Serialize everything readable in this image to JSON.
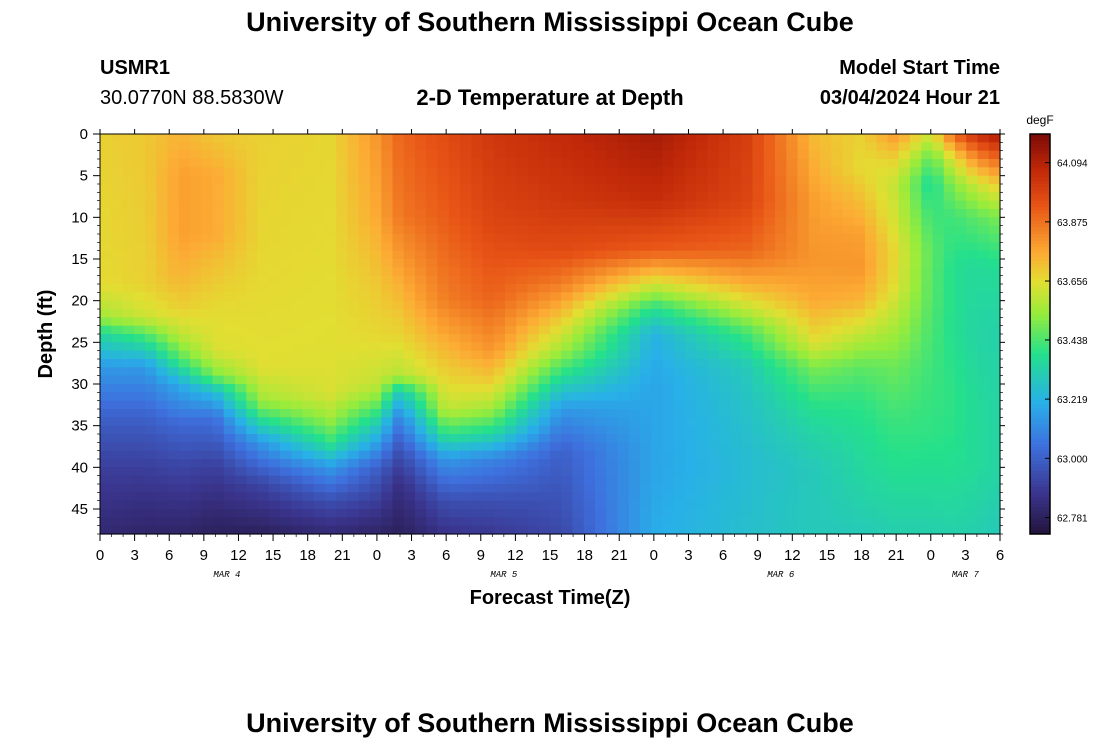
{
  "header": {
    "title": "University of Southern Mississippi Ocean Cube",
    "station_id": "USMR1",
    "coordinates": "30.0770N  88.5830W",
    "plot_title": "2-D Temperature at Depth",
    "model_start_label": "Model Start Time",
    "model_start_value": "03/04/2024 Hour 21"
  },
  "footer": {
    "title": "University of Southern Mississippi Ocean Cube"
  },
  "chart_data": {
    "type": "heatmap",
    "title": "2-D Temperature at Depth",
    "xlabel": "Forecast Time(Z)",
    "ylabel": "Depth (ft)",
    "x_range_hours": [
      0,
      78
    ],
    "y_range_ft": [
      0,
      48
    ],
    "x_tick_labels": [
      "0",
      "3",
      "6",
      "9",
      "12",
      "15",
      "18",
      "21",
      "0",
      "3",
      "6",
      "9",
      "12",
      "15",
      "18",
      "21",
      "0",
      "3",
      "6",
      "9",
      "12",
      "15",
      "18",
      "21",
      "0",
      "3",
      "6"
    ],
    "day_labels": [
      {
        "label": "MAR 4",
        "hour": 11
      },
      {
        "label": "MAR 5",
        "hour": 35
      },
      {
        "label": "MAR 6",
        "hour": 59
      },
      {
        "label": "MAR 7",
        "hour": 75
      }
    ],
    "y_ticks": [
      0,
      5,
      10,
      15,
      20,
      25,
      30,
      35,
      40,
      45
    ],
    "colorbar": {
      "unit": "degF",
      "min": 62.72,
      "max": 64.2,
      "tick_values": [
        62.781,
        63.0,
        63.219,
        63.438,
        63.656,
        63.875,
        64.094
      ],
      "tick_labels": [
        "62.781",
        "63.000",
        "63.219",
        "63.438",
        "63.656",
        "63.875",
        "64.094"
      ]
    },
    "temperature_profiles_by_hour": [
      {
        "hour": 0,
        "depth_ft": [
          0,
          18,
          22,
          24,
          28,
          34,
          40,
          48
        ],
        "temp_f": [
          63.68,
          63.66,
          63.55,
          63.35,
          63.15,
          63.0,
          62.9,
          62.82
        ]
      },
      {
        "hour": 4,
        "depth_ft": [
          0,
          18,
          22,
          24,
          28,
          34,
          40,
          48
        ],
        "temp_f": [
          63.7,
          63.68,
          63.62,
          63.45,
          63.15,
          63.0,
          62.9,
          62.8
        ]
      },
      {
        "hour": 7,
        "depth_ft": [
          0,
          5,
          12,
          17,
          21,
          24,
          27,
          30,
          35,
          40,
          48
        ],
        "temp_f": [
          63.74,
          63.78,
          63.78,
          63.74,
          63.68,
          63.6,
          63.45,
          63.2,
          63.02,
          62.92,
          62.8
        ]
      },
      {
        "hour": 10,
        "depth_ft": [
          0,
          5,
          12,
          17,
          21,
          26,
          29,
          31,
          34,
          40,
          48
        ],
        "temp_f": [
          63.7,
          63.76,
          63.76,
          63.7,
          63.66,
          63.64,
          63.5,
          63.25,
          63.05,
          62.9,
          62.78
        ]
      },
      {
        "hour": 14,
        "depth_ft": [
          0,
          12,
          20,
          28,
          32,
          34,
          37,
          42,
          48
        ],
        "temp_f": [
          63.68,
          63.67,
          63.66,
          63.65,
          63.55,
          63.4,
          63.15,
          62.92,
          62.78
        ]
      },
      {
        "hour": 20,
        "depth_ft": [
          0,
          15,
          25,
          31,
          34,
          37,
          40,
          44,
          48
        ],
        "temp_f": [
          63.67,
          63.66,
          63.65,
          63.64,
          63.55,
          63.4,
          63.15,
          62.95,
          62.82
        ]
      },
      {
        "hour": 24,
        "depth_ft": [
          0,
          10,
          18,
          25,
          30,
          32,
          35,
          40,
          48
        ],
        "temp_f": [
          63.8,
          63.76,
          63.7,
          63.66,
          63.6,
          63.5,
          63.3,
          63.0,
          62.8
        ]
      },
      {
        "hour": 26,
        "depth_ft": [
          0,
          10,
          18,
          25,
          29,
          31,
          34,
          38,
          42,
          48
        ],
        "temp_f": [
          63.9,
          63.86,
          63.75,
          63.66,
          63.58,
          63.3,
          63.1,
          62.95,
          62.85,
          62.78
        ]
      },
      {
        "hour": 30,
        "depth_ft": [
          0,
          10,
          20,
          25,
          30,
          33,
          36,
          39,
          44,
          48
        ],
        "temp_f": [
          63.96,
          63.92,
          63.85,
          63.75,
          63.66,
          63.6,
          63.4,
          63.15,
          62.95,
          62.86
        ]
      },
      {
        "hour": 34,
        "depth_ft": [
          0,
          10,
          20,
          26,
          30,
          33,
          36,
          39,
          44,
          48
        ],
        "temp_f": [
          64.02,
          63.98,
          63.9,
          63.8,
          63.68,
          63.55,
          63.35,
          63.1,
          62.95,
          62.88
        ]
      },
      {
        "hour": 40,
        "depth_ft": [
          0,
          8,
          14,
          18,
          22,
          26,
          29,
          33,
          38,
          48
        ],
        "temp_f": [
          64.06,
          64.02,
          63.96,
          63.85,
          63.7,
          63.55,
          63.38,
          63.15,
          63.0,
          62.93
        ]
      },
      {
        "hour": 48,
        "depth_ft": [
          0,
          8,
          14,
          17,
          19,
          21,
          24,
          30,
          40,
          48
        ],
        "temp_f": [
          64.12,
          64.05,
          63.92,
          63.7,
          63.55,
          63.38,
          63.22,
          63.18,
          63.18,
          63.2
        ]
      },
      {
        "hour": 56,
        "depth_ft": [
          0,
          8,
          14,
          18,
          21,
          24,
          28,
          33,
          40,
          48
        ],
        "temp_f": [
          64.0,
          63.98,
          63.9,
          63.75,
          63.6,
          63.42,
          63.3,
          63.27,
          63.25,
          63.26
        ]
      },
      {
        "hour": 62,
        "depth_ft": [
          0,
          8,
          15,
          20,
          25,
          28,
          31,
          35,
          40,
          48
        ],
        "temp_f": [
          63.72,
          63.78,
          63.8,
          63.76,
          63.65,
          63.5,
          63.42,
          63.35,
          63.3,
          63.3
        ]
      },
      {
        "hour": 66,
        "depth_ft": [
          0,
          4,
          8,
          12,
          16,
          20,
          24,
          28,
          32,
          38,
          44,
          48
        ],
        "temp_f": [
          63.68,
          63.66,
          63.72,
          63.78,
          63.8,
          63.74,
          63.6,
          63.46,
          63.4,
          63.36,
          63.33,
          63.3
        ]
      },
      {
        "hour": 69,
        "depth_ft": [
          0,
          3,
          6,
          10,
          14,
          18,
          22,
          28,
          34,
          40,
          48
        ],
        "temp_f": [
          63.8,
          63.68,
          63.6,
          63.62,
          63.66,
          63.65,
          63.58,
          63.48,
          63.42,
          63.38,
          63.32
        ]
      },
      {
        "hour": 72,
        "depth_ft": [
          0,
          3,
          6,
          10,
          14,
          20,
          28,
          36,
          44,
          48
        ],
        "temp_f": [
          63.62,
          63.46,
          63.36,
          63.42,
          63.46,
          63.45,
          63.42,
          63.4,
          63.35,
          63.32
        ]
      },
      {
        "hour": 74,
        "depth_ft": [
          0,
          3,
          6,
          10,
          16,
          24,
          32,
          40,
          48
        ],
        "temp_f": [
          63.9,
          63.65,
          63.52,
          63.42,
          63.38,
          63.38,
          63.4,
          63.38,
          63.33
        ]
      },
      {
        "hour": 76,
        "depth_ft": [
          0,
          3,
          6,
          10,
          16,
          24,
          32,
          40,
          48
        ],
        "temp_f": [
          64.05,
          63.82,
          63.62,
          63.46,
          63.36,
          63.34,
          63.36,
          63.36,
          63.32
        ]
      },
      {
        "hour": 78,
        "depth_ft": [
          0,
          3,
          6,
          10,
          16,
          24,
          32,
          40,
          48
        ],
        "temp_f": [
          64.12,
          63.9,
          63.7,
          63.5,
          63.37,
          63.33,
          63.34,
          63.34,
          63.3
        ]
      }
    ]
  }
}
